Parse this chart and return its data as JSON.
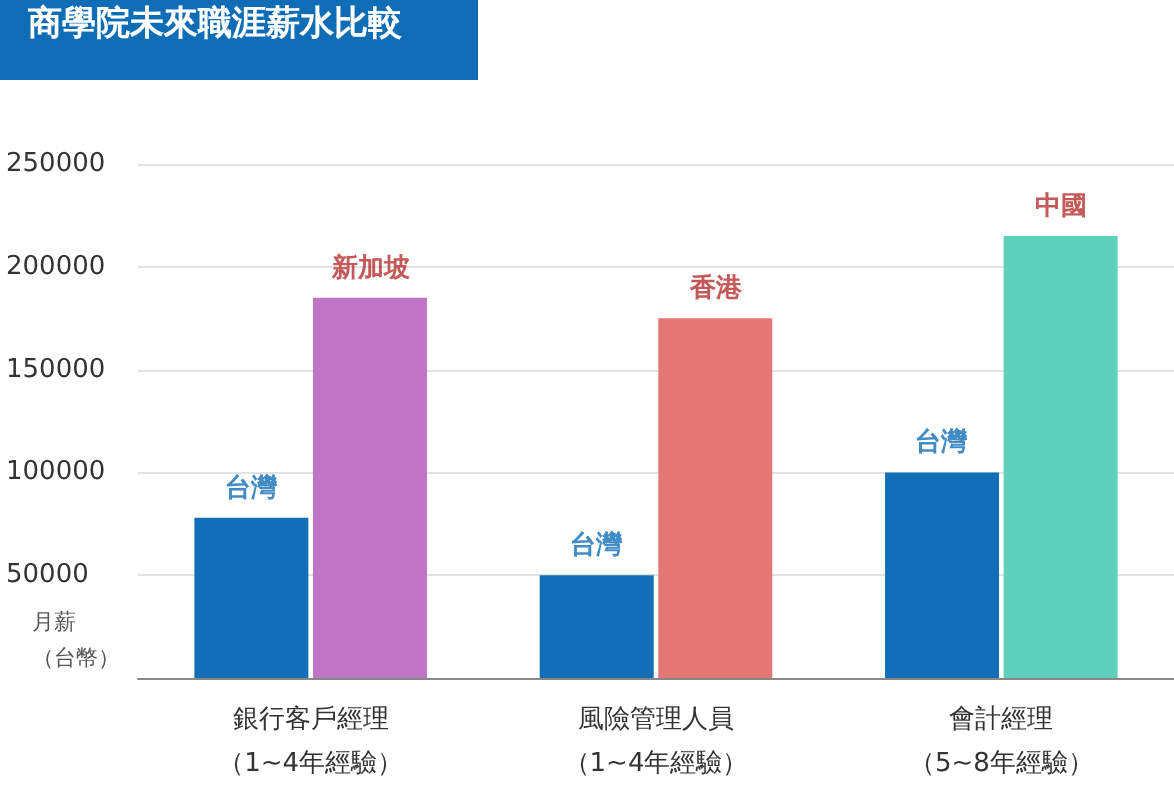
{
  "chart_data": {
    "type": "bar",
    "title": "商學院未來職涯薪水比較",
    "ylabel": "月薪（台幣）",
    "categories": [
      "銀行客戶經理（1~4年經驗）",
      "風險管理人員（1~4年經驗）",
      "會計經理（5~8年經驗）"
    ],
    "series": [
      {
        "color": "#116fb7",
        "values": [
          78000,
          50000,
          100000
        ]
      },
      {
        "colors": [
          "#c074c4",
          "#e57676",
          "#5fd0bc"
        ],
        "values": [
          185000,
          175000,
          215000
        ]
      }
    ],
    "annotations": [
      {
        "text": "台灣",
        "x": "銀行客戶經理（1~4年經驗）",
        "y": 78000
      },
      {
        "text": "新加坡",
        "x": "銀行客戶經理（1~4年經驗）",
        "y": 185000
      },
      {
        "text": "台灣",
        "x": "風險管理人員（1~4年經驗）",
        "y": 50000
      },
      {
        "text": "香港",
        "x": "風險管理人員（1~4年經驗）",
        "y": 175000
      },
      {
        "text": "台灣",
        "x": "會計經理（5~8年經驗）",
        "y": 100000
      },
      {
        "text": "中國",
        "x": "會計經理（5~8年經驗）",
        "y": 215000
      }
    ],
    "ylim": [
      0,
      250000
    ],
    "yticks": [
      50000,
      100000,
      150000,
      200000,
      250000
    ],
    "grid": "y"
  }
}
